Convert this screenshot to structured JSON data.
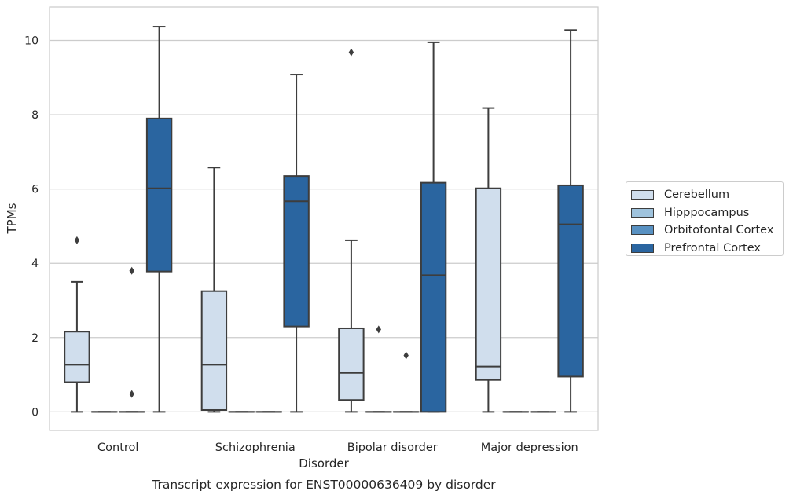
{
  "chart_data": {
    "type": "box",
    "title": "Transcript expression for ENST00000636409 by disorder",
    "xlabel": "Disorder",
    "ylabel": "TPMs",
    "ylim": [
      -0.5,
      10.9
    ],
    "yticks": [
      0,
      2,
      4,
      6,
      8,
      10
    ],
    "grid": "horizontal",
    "legend_position": "right",
    "categories": [
      "Control",
      "Schizophrenia",
      "Bipolar disorder",
      "Major depression"
    ],
    "series": [
      {
        "name": "Cerebellum",
        "color": "#d0deed",
        "boxes": [
          {
            "whislo": 0.0,
            "q1": 0.8,
            "med": 1.27,
            "q3": 2.16,
            "whishi": 3.5,
            "fliers": [
              4.62
            ]
          },
          {
            "whislo": 0.0,
            "q1": 0.05,
            "med": 1.27,
            "q3": 3.25,
            "whishi": 6.58,
            "fliers": []
          },
          {
            "whislo": 0.0,
            "q1": 0.32,
            "med": 1.05,
            "q3": 2.25,
            "whishi": 4.62,
            "fliers": [
              9.68
            ]
          },
          {
            "whislo": 0.0,
            "q1": 0.86,
            "med": 1.22,
            "q3": 6.02,
            "whishi": 8.18,
            "fliers": []
          }
        ]
      },
      {
        "name": "Hipppocampus",
        "color": "#9fc3dd",
        "boxes": [
          {
            "whislo": 0.0,
            "q1": 0.0,
            "med": 0.0,
            "q3": 0.0,
            "whishi": 0.0,
            "fliers": []
          },
          {
            "whislo": 0.0,
            "q1": 0.0,
            "med": 0.0,
            "q3": 0.0,
            "whishi": 0.0,
            "fliers": []
          },
          {
            "whislo": 0.0,
            "q1": 0.0,
            "med": 0.0,
            "q3": 0.0,
            "whishi": 0.0,
            "fliers": [
              2.22
            ]
          },
          {
            "whislo": 0.0,
            "q1": 0.0,
            "med": 0.0,
            "q3": 0.0,
            "whishi": 0.0,
            "fliers": []
          }
        ]
      },
      {
        "name": "Orbitofontal Cortex",
        "color": "#5891c2",
        "boxes": [
          {
            "whislo": 0.0,
            "q1": 0.0,
            "med": 0.0,
            "q3": 0.0,
            "whishi": 0.0,
            "fliers": [
              3.8,
              0.48
            ]
          },
          {
            "whislo": 0.0,
            "q1": 0.0,
            "med": 0.0,
            "q3": 0.0,
            "whishi": 0.0,
            "fliers": []
          },
          {
            "whislo": 0.0,
            "q1": 0.0,
            "med": 0.0,
            "q3": 0.0,
            "whishi": 0.0,
            "fliers": [
              1.52
            ]
          },
          {
            "whislo": 0.0,
            "q1": 0.0,
            "med": 0.0,
            "q3": 0.0,
            "whishi": 0.0,
            "fliers": []
          }
        ]
      },
      {
        "name": "Prefrontal Cortex",
        "color": "#2a65a0",
        "boxes": [
          {
            "whislo": 0.0,
            "q1": 3.78,
            "med": 6.02,
            "q3": 7.9,
            "whishi": 10.37,
            "fliers": []
          },
          {
            "whislo": 0.0,
            "q1": 2.3,
            "med": 5.67,
            "q3": 6.35,
            "whishi": 9.08,
            "fliers": []
          },
          {
            "whislo": 0.0,
            "q1": 0.0,
            "med": 3.68,
            "q3": 6.17,
            "whishi": 9.95,
            "fliers": []
          },
          {
            "whislo": 0.0,
            "q1": 0.95,
            "med": 5.05,
            "q3": 6.1,
            "whishi": 10.28,
            "fliers": []
          }
        ]
      }
    ]
  }
}
